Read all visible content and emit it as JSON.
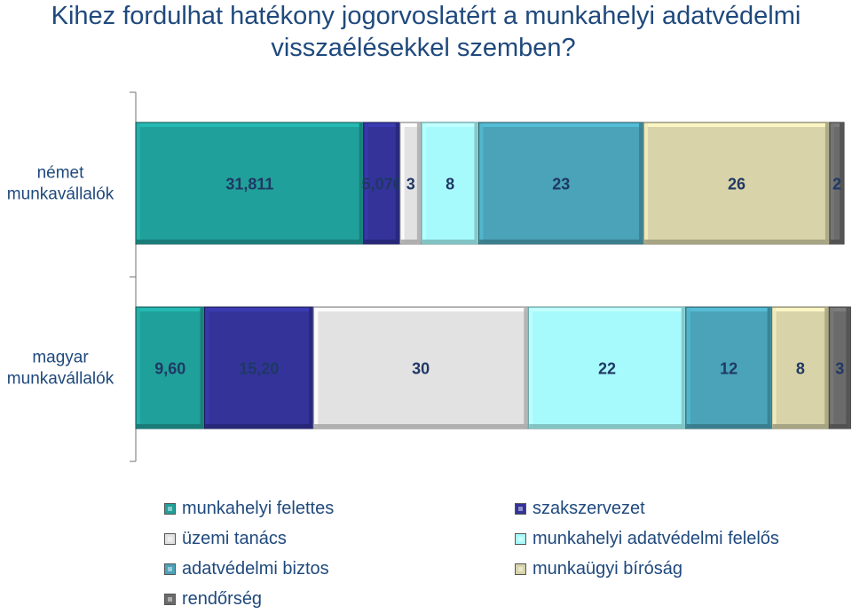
{
  "title_line1": "Kihez fordulhat hatékony jogorvoslatért a munkahelyi adatvédelmi",
  "title_line2": "visszaélésekkel szemben?",
  "chart_data": {
    "type": "bar",
    "orientation": "horizontal",
    "stacked": true,
    "categories": [
      "német munkavállalók",
      "magyar munkavállalók"
    ],
    "category_label_lines": [
      [
        "német",
        "munkavállalók"
      ],
      [
        "magyar",
        "munkavállalók"
      ]
    ],
    "series": [
      {
        "name": "munkahelyi felettes",
        "color": "#20a09a",
        "values": [
          31.811,
          9.6
        ],
        "labels": [
          "31,811",
          "9,60"
        ]
      },
      {
        "name": "szakszervezet",
        "color": "#33339a",
        "values": [
          5.076,
          15.2
        ],
        "labels": [
          "5,076",
          "15,20"
        ]
      },
      {
        "name": "üzemi tanács",
        "color": "#e2e2e2",
        "values": [
          3,
          30
        ],
        "labels": [
          "3",
          "30"
        ]
      },
      {
        "name": "munkahelyi adatvédelmi felelős",
        "color": "#a6fafc",
        "values": [
          8,
          22
        ],
        "labels": [
          "8",
          "22"
        ]
      },
      {
        "name": "adatvédelmi biztos",
        "color": "#4aa3b8",
        "values": [
          23,
          12
        ],
        "labels": [
          "23",
          "12"
        ]
      },
      {
        "name": "munkaügyi bíróság",
        "color": "#d8d3a8",
        "values": [
          26,
          8
        ],
        "labels": [
          "26",
          "8"
        ]
      },
      {
        "name": "rendőrség",
        "color": "#6b6b6b",
        "values": [
          2,
          3
        ],
        "labels": [
          "2",
          "3"
        ]
      }
    ],
    "xlim": [
      0,
      100
    ],
    "legend_position": "bottom",
    "grid": false
  }
}
